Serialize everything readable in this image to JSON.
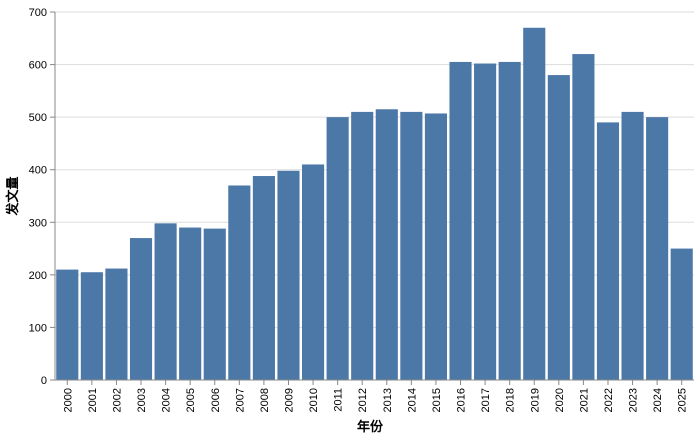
{
  "chart_data": {
    "type": "bar",
    "xlabel": "年份",
    "ylabel": "发文量",
    "categories": [
      "2000",
      "2001",
      "2002",
      "2003",
      "2004",
      "2005",
      "2006",
      "2007",
      "2008",
      "2009",
      "2010",
      "2011",
      "2012",
      "2013",
      "2014",
      "2015",
      "2016",
      "2017",
      "2018",
      "2019",
      "2020",
      "2021",
      "2022",
      "2023",
      "2024",
      "2025"
    ],
    "values": [
      210,
      205,
      212,
      270,
      298,
      290,
      288,
      370,
      388,
      398,
      410,
      500,
      510,
      515,
      510,
      507,
      605,
      602,
      605,
      670,
      580,
      620,
      490,
      510,
      500,
      250
    ],
    "ylim": [
      0,
      700
    ],
    "yticks": [
      0,
      100,
      200,
      300,
      400,
      500,
      600,
      700
    ],
    "grid": true,
    "bar_color": "#4c78a8",
    "grid_color": "#dddddd",
    "axis_color": "#888888"
  }
}
